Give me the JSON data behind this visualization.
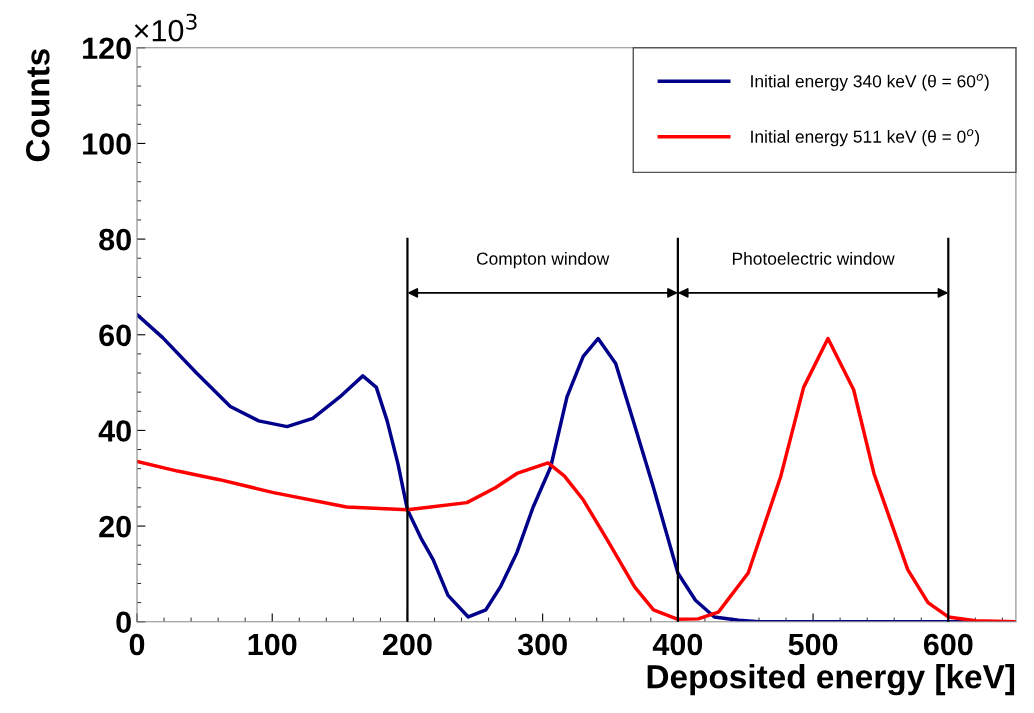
{
  "chart_data": {
    "type": "line",
    "xlabel": "Deposited energy [keV]",
    "ylabel": "Counts",
    "annotations": [
      "×10$^{3}$",
      "Compton window",
      "Photoelectric window"
    ],
    "xlim": [
      0,
      650
    ],
    "xticks": [
      0,
      100,
      200,
      300,
      400,
      500,
      600
    ],
    "ylim": [
      0,
      120
    ],
    "yticks": [
      0,
      20,
      40,
      60,
      80,
      100,
      120
    ],
    "grid": false,
    "legend": "top right",
    "line_style": "solid",
    "marker": "none",
    "ref_lines": [
      {
        "axis": "x",
        "value": 200,
        "color": "#000000"
      },
      {
        "axis": "x",
        "value": 400,
        "color": "#000000"
      },
      {
        "axis": "x",
        "value": 600,
        "color": "#000000"
      }
    ],
    "series": [
      {
        "name": "Initial energy 340 keV (θ = 60$^{o}$)",
        "color": "#00008b",
        "x": [
          0,
          19,
          44,
          69,
          90,
          111,
          130,
          150,
          167,
          177,
          185,
          193,
          200,
          210,
          219,
          230,
          245,
          258,
          269,
          281,
          293,
          306,
          318,
          330,
          341,
          354,
          367,
          382,
          400,
          413,
          427,
          445,
          460,
          500,
          550,
          600,
          650
        ],
        "values": [
          64.2,
          59.4,
          52,
          45,
          42,
          40.8,
          42.5,
          47,
          51.4,
          49,
          42,
          33,
          23.4,
          17.5,
          13,
          5.5,
          1,
          2.5,
          7.4,
          14.5,
          24,
          32.4,
          47,
          55.5,
          59.2,
          54,
          42,
          28,
          10.2,
          4.5,
          1,
          0.3,
          0,
          0,
          0,
          0,
          0
        ]
      },
      {
        "name": "Initial energy 511 keV (θ = 0$^{o}$)",
        "color": "#ff0000",
        "x": [
          0,
          30,
          61,
          101,
          155,
          200,
          244,
          265,
          281,
          304,
          316,
          330,
          348,
          368,
          382,
          400,
          415,
          430,
          452,
          476,
          493,
          511,
          530,
          545,
          570,
          585,
          600,
          620,
          650
        ],
        "values": [
          33.5,
          31.5,
          29.7,
          27,
          24,
          23.4,
          24.9,
          28,
          31,
          33.2,
          30.5,
          25.5,
          17,
          7.3,
          2.5,
          0.5,
          0.6,
          2,
          10.2,
          30.3,
          49,
          59.2,
          48.5,
          31,
          10.9,
          4,
          1,
          0.2,
          0
        ]
      }
    ]
  }
}
